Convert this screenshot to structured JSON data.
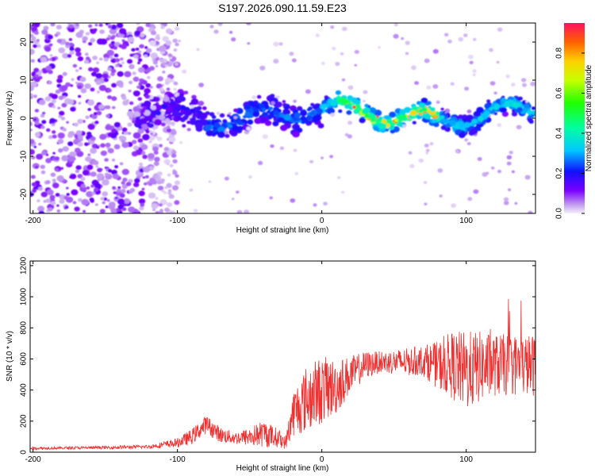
{
  "title": "S197.2026.090.11.59.E23",
  "chart_data": [
    {
      "type": "heatmap",
      "name": "spectrogram",
      "xlabel": "Height of straight line (km)",
      "ylabel": "Frequency (Hz)",
      "xlim": [
        -202,
        148
      ],
      "ylim": [
        -25,
        25
      ],
      "xticks": [
        -200,
        -100,
        0,
        100
      ],
      "yticks": [
        -20,
        -10,
        0,
        10,
        20
      ],
      "colorbar": {
        "label": "Normalized spectral amplitude",
        "range": [
          0.0,
          0.95
        ],
        "ticks": [
          0.0,
          0.2,
          0.4,
          0.6,
          0.8
        ]
      },
      "ridge_frequency_hz": 1,
      "noise_region_km": [
        -202,
        -120
      ],
      "strong_band_km": [
        10,
        80
      ],
      "strong_band_amplitude": 0.9
    },
    {
      "type": "line",
      "name": "snr",
      "xlabel": "Height of straight line (km)",
      "ylabel": "SNR (10 * v/v)",
      "xlim": [
        -202,
        148
      ],
      "ylim": [
        0,
        1230
      ],
      "xticks": [
        -200,
        -100,
        0,
        100
      ],
      "yticks": [
        0,
        200,
        400,
        600,
        800,
        1000,
        1200
      ],
      "color": "#ee3030",
      "envelope": {
        "x": [
          -202,
          -150,
          -120,
          -100,
          -90,
          -80,
          -70,
          -60,
          -50,
          -40,
          -30,
          -25,
          -20,
          -10,
          0,
          10,
          20,
          30,
          40,
          50,
          60,
          70,
          80,
          90,
          100,
          110,
          120,
          130,
          140,
          148
        ],
        "y": [
          25,
          30,
          35,
          60,
          100,
          180,
          110,
          90,
          100,
          120,
          90,
          60,
          250,
          350,
          400,
          420,
          500,
          560,
          580,
          580,
          580,
          590,
          560,
          560,
          520,
          550,
          560,
          560,
          560,
          560
        ],
        "spread": [
          8,
          10,
          12,
          30,
          50,
          60,
          50,
          40,
          60,
          90,
          60,
          40,
          150,
          220,
          220,
          180,
          120,
          90,
          70,
          80,
          90,
          100,
          150,
          220,
          260,
          230,
          200,
          200,
          200,
          200
        ]
      }
    }
  ]
}
